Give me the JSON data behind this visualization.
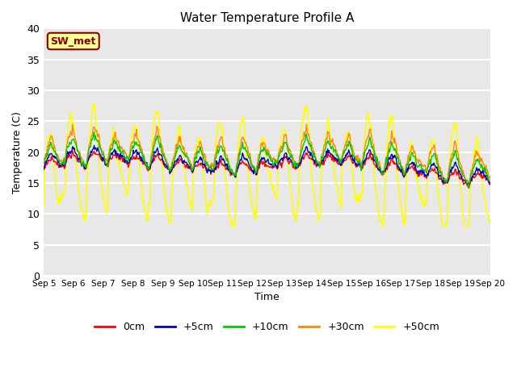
{
  "title": "Water Temperature Profile A",
  "xlabel": "Time",
  "ylabel": "Temperature (C)",
  "ylim": [
    0,
    40
  ],
  "yticks": [
    0,
    5,
    10,
    15,
    20,
    25,
    30,
    35,
    40
  ],
  "n_days": 15,
  "x_tick_labels": [
    "Sep 5",
    "Sep 6",
    "Sep 7",
    "Sep 8",
    "Sep 9",
    "Sep 10",
    "Sep 11",
    "Sep 12",
    "Sep 13",
    "Sep 14",
    "Sep 15",
    "Sep 16",
    "Sep 17",
    "Sep 18",
    "Sep 19",
    "Sep 20"
  ],
  "background_color": "#e8e8e8",
  "grid_color": "#ffffff",
  "annotation_text": "SW_met",
  "annotation_color": "#8b0000",
  "annotation_bg": "#ffff99",
  "line_colors": [
    "#ff0000",
    "#0000cc",
    "#00cc00",
    "#ff8800",
    "#ffff00"
  ],
  "line_labels": [
    "0cm",
    "+5cm",
    "+10cm",
    "+30cm",
    "+50cm"
  ],
  "n_per_day": 48
}
